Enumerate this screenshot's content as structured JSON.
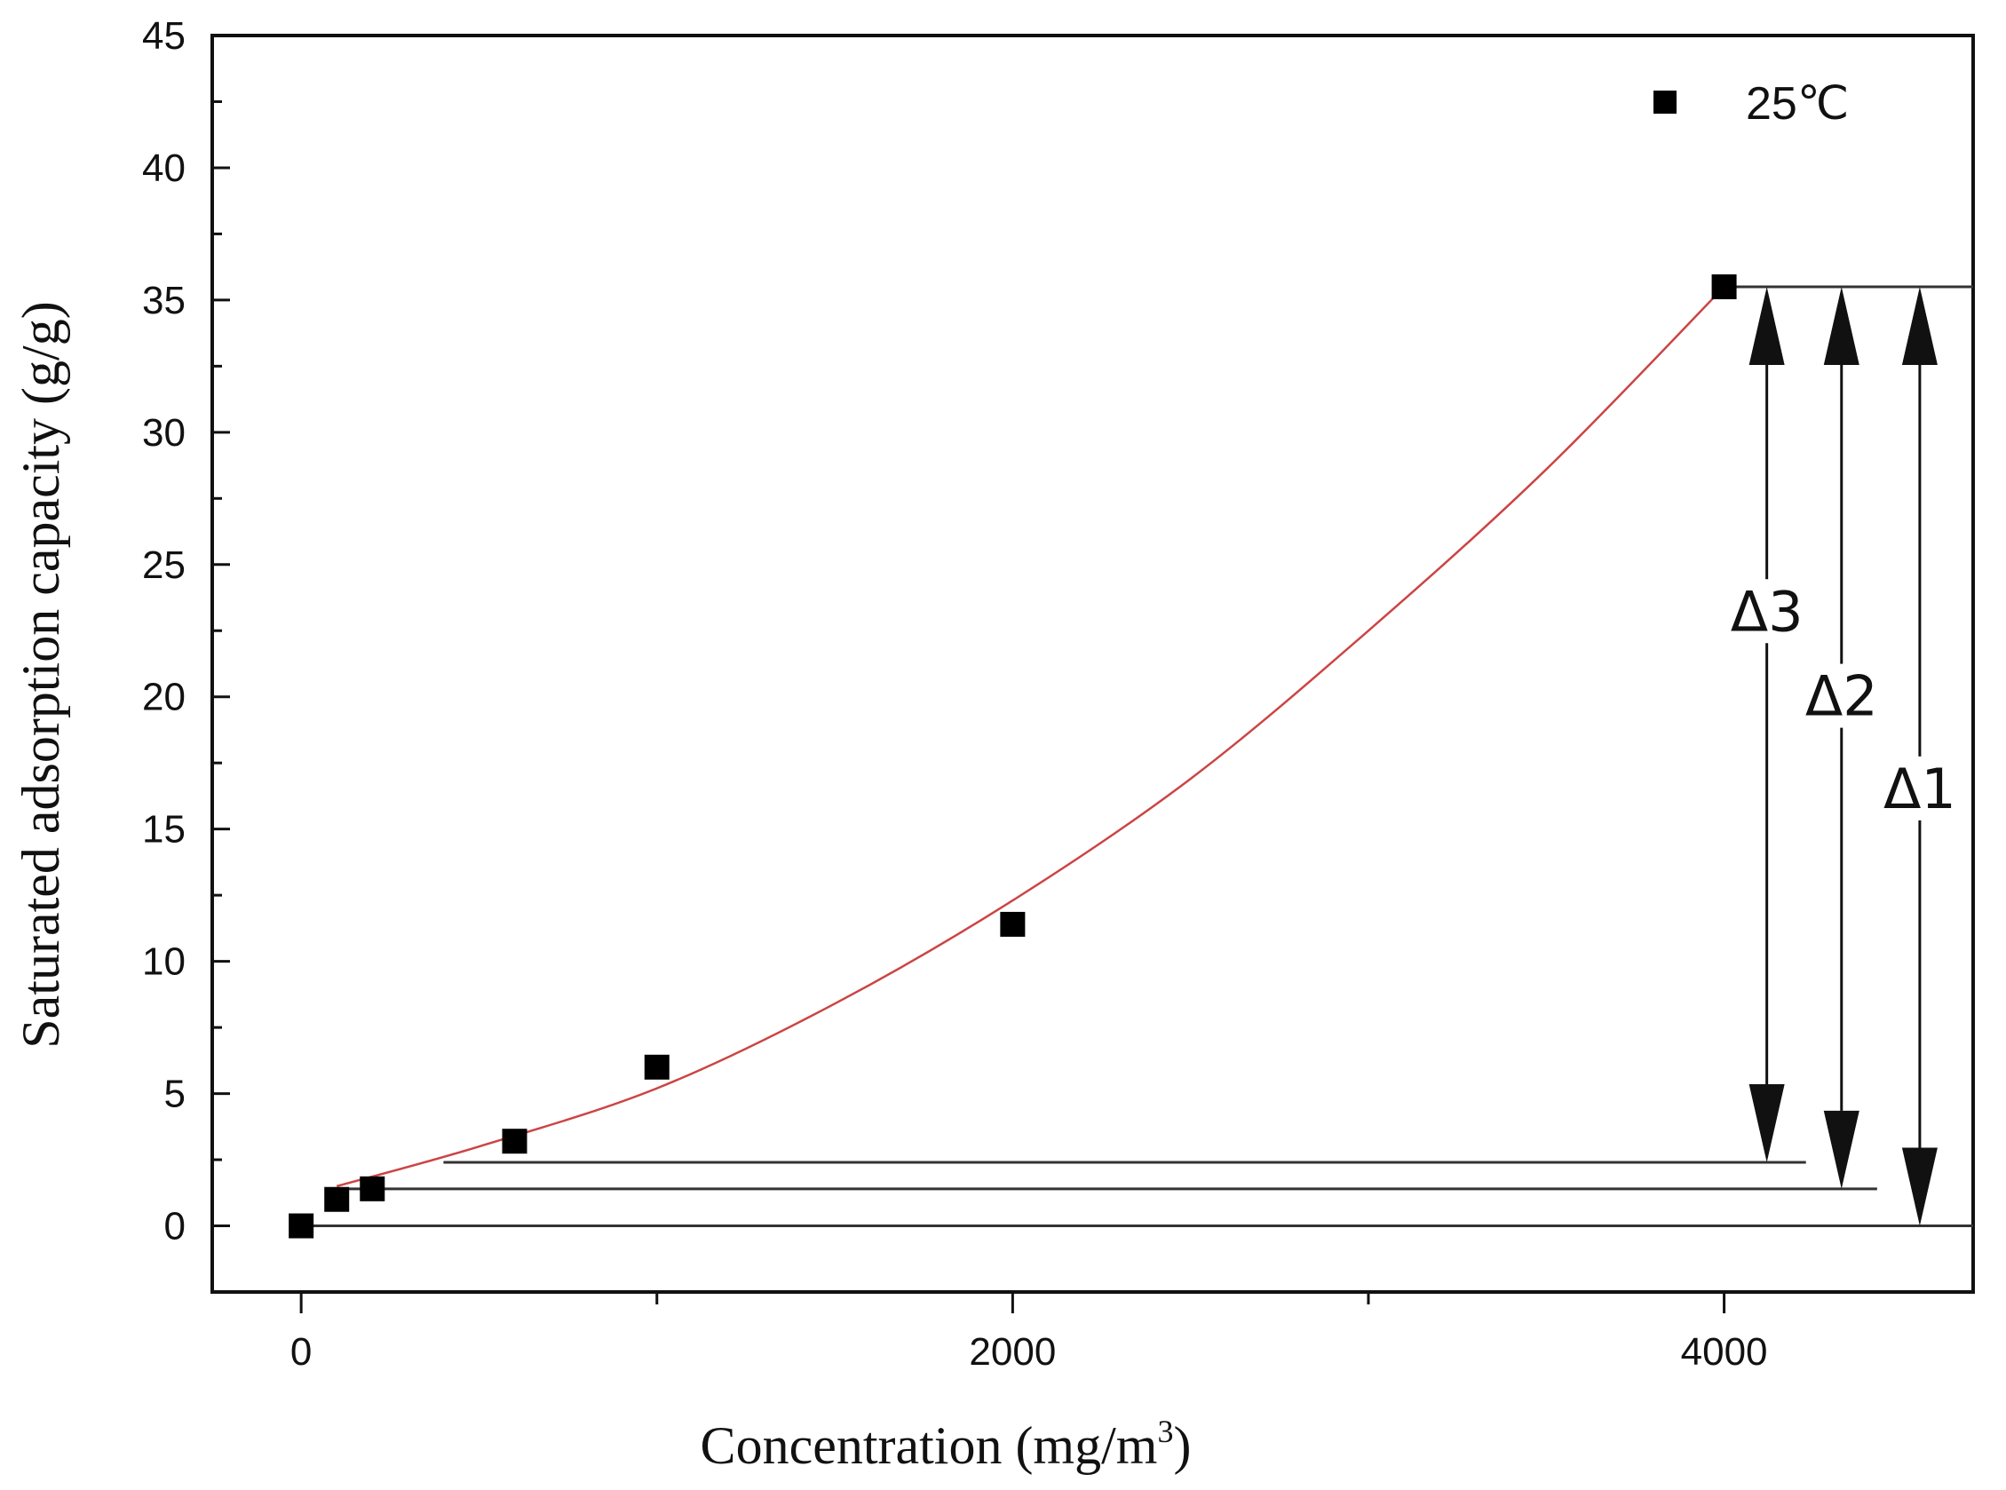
{
  "chart_data": {
    "type": "scatter",
    "title": "",
    "xlabel": "Concentration (mg/m",
    "xlabel_superscript": "3",
    "xlabel_close": ")",
    "ylabel": "Saturated adsorption capacity (g/g)",
    "xlim": [
      -250,
      4700
    ],
    "ylim": [
      -2.5,
      45
    ],
    "x_ticks": [
      0,
      2000,
      4000
    ],
    "x_tick_labels": [
      "0",
      "2000",
      "4000"
    ],
    "x_minor_ticks": [
      1000,
      3000
    ],
    "y_ticks": [
      0,
      5,
      10,
      15,
      20,
      25,
      30,
      35,
      40,
      45
    ],
    "y_tick_labels": [
      "0",
      "5",
      "10",
      "15",
      "20",
      "25",
      "30",
      "35",
      "40",
      "45"
    ],
    "grid": false,
    "legend_position": "top-right",
    "series": [
      {
        "name": "25℃",
        "marker": "square",
        "color": "#000000",
        "x": [
          0,
          100,
          200,
          600,
          1000,
          2000,
          4000
        ],
        "y": [
          0,
          1.0,
          1.4,
          3.2,
          6.0,
          11.4,
          35.5
        ]
      }
    ],
    "fit_curve": {
      "color": "#cc4444",
      "x_range": [
        100,
        4000
      ],
      "x": [
        100,
        500,
        1000,
        1500,
        2000,
        2500,
        3000,
        3500,
        4000
      ],
      "y": [
        1.5,
        3.0,
        5.2,
        8.4,
        12.3,
        16.9,
        22.5,
        28.6,
        35.5
      ]
    },
    "reference_lines": [
      {
        "y": 35.5,
        "x_start": 4000,
        "x_end": 4700
      },
      {
        "y": 2.4,
        "x_start": 400,
        "x_end": 4230
      },
      {
        "y": 1.4,
        "x_start": 100,
        "x_end": 4430
      },
      {
        "y": 0,
        "x_start": 0,
        "x_end": 4700
      }
    ],
    "annotations": [
      {
        "label": "Δ3",
        "x": 4120,
        "y_top": 35.5,
        "y_bottom": 2.4
      },
      {
        "label": "Δ2",
        "x": 4330,
        "y_top": 35.5,
        "y_bottom": 1.4
      },
      {
        "label": "Δ1",
        "x": 4550,
        "y_top": 35.5,
        "y_bottom": 0
      }
    ]
  }
}
